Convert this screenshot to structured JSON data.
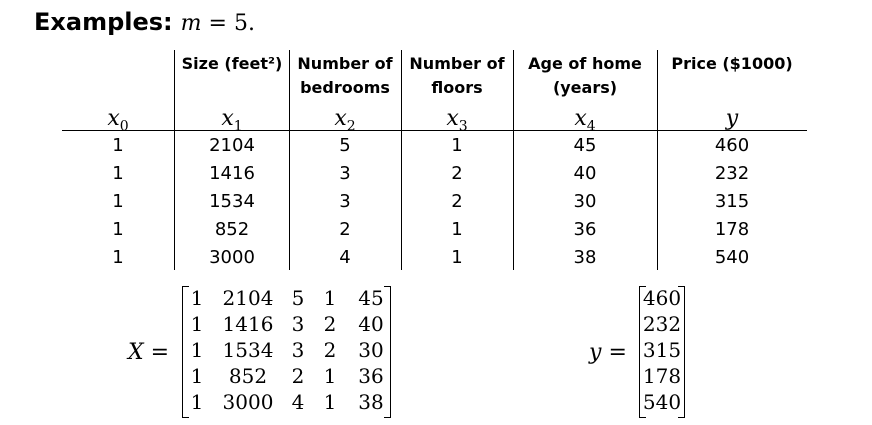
{
  "title": {
    "label": "Examples:",
    "math_var": "m",
    "math_rest": " = 5."
  },
  "table": {
    "headers": [
      {
        "lines": [
          "",
          ""
        ],
        "var": "x",
        "sub": "0"
      },
      {
        "lines": [
          "Size (feet²)",
          ""
        ],
        "var": "x",
        "sub": "1"
      },
      {
        "lines": [
          "Number of",
          "bedrooms"
        ],
        "var": "x",
        "sub": "2"
      },
      {
        "lines": [
          "Number of",
          "floors"
        ],
        "var": "x",
        "sub": "3"
      },
      {
        "lines": [
          "Age of home",
          "(years)"
        ],
        "var": "x",
        "sub": "4"
      },
      {
        "lines": [
          "Price ($1000)",
          ""
        ],
        "var": "y",
        "sub": ""
      }
    ],
    "rows": [
      [
        "1",
        "2104",
        "5",
        "1",
        "45",
        "460"
      ],
      [
        "1",
        "1416",
        "3",
        "2",
        "40",
        "232"
      ],
      [
        "1",
        "1534",
        "3",
        "2",
        "30",
        "315"
      ],
      [
        "1",
        "852",
        "2",
        "1",
        "36",
        "178"
      ],
      [
        "1",
        "3000",
        "4",
        "1",
        "38",
        "540"
      ]
    ]
  },
  "matrix_X": {
    "var": "X",
    "eq": "=",
    "rows": [
      [
        "1",
        "2104",
        "5",
        "1",
        "45"
      ],
      [
        "1",
        "1416",
        "3",
        "2",
        "40"
      ],
      [
        "1",
        "1534",
        "3",
        "2",
        "30"
      ],
      [
        "1",
        "852",
        "2",
        "1",
        "36"
      ],
      [
        "1",
        "3000",
        "4",
        "1",
        "38"
      ]
    ]
  },
  "vector_y": {
    "var": "y",
    "eq": "=",
    "rows": [
      "460",
      "232",
      "315",
      "178",
      "540"
    ]
  }
}
